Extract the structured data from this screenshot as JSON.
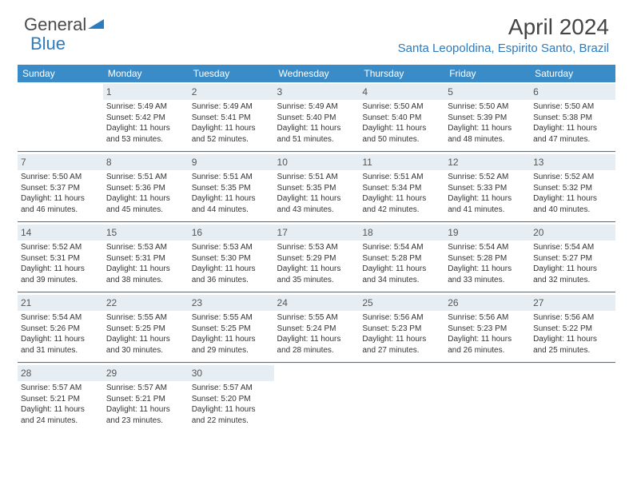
{
  "brand": {
    "part1": "General",
    "part2": "Blue"
  },
  "title": "April 2024",
  "location": "Santa Leopoldina, Espirito Santo, Brazil",
  "colors": {
    "header_bg": "#3a8cc9",
    "accent": "#2b7bbf",
    "daybar": "#e6eef4",
    "text": "#333333"
  },
  "weekdays": [
    "Sunday",
    "Monday",
    "Tuesday",
    "Wednesday",
    "Thursday",
    "Friday",
    "Saturday"
  ],
  "weeks": [
    [
      null,
      {
        "n": "1",
        "sr": "5:49 AM",
        "ss": "5:42 PM",
        "dl": "11 hours and 53 minutes."
      },
      {
        "n": "2",
        "sr": "5:49 AM",
        "ss": "5:41 PM",
        "dl": "11 hours and 52 minutes."
      },
      {
        "n": "3",
        "sr": "5:49 AM",
        "ss": "5:40 PM",
        "dl": "11 hours and 51 minutes."
      },
      {
        "n": "4",
        "sr": "5:50 AM",
        "ss": "5:40 PM",
        "dl": "11 hours and 50 minutes."
      },
      {
        "n": "5",
        "sr": "5:50 AM",
        "ss": "5:39 PM",
        "dl": "11 hours and 48 minutes."
      },
      {
        "n": "6",
        "sr": "5:50 AM",
        "ss": "5:38 PM",
        "dl": "11 hours and 47 minutes."
      }
    ],
    [
      {
        "n": "7",
        "sr": "5:50 AM",
        "ss": "5:37 PM",
        "dl": "11 hours and 46 minutes."
      },
      {
        "n": "8",
        "sr": "5:51 AM",
        "ss": "5:36 PM",
        "dl": "11 hours and 45 minutes."
      },
      {
        "n": "9",
        "sr": "5:51 AM",
        "ss": "5:35 PM",
        "dl": "11 hours and 44 minutes."
      },
      {
        "n": "10",
        "sr": "5:51 AM",
        "ss": "5:35 PM",
        "dl": "11 hours and 43 minutes."
      },
      {
        "n": "11",
        "sr": "5:51 AM",
        "ss": "5:34 PM",
        "dl": "11 hours and 42 minutes."
      },
      {
        "n": "12",
        "sr": "5:52 AM",
        "ss": "5:33 PM",
        "dl": "11 hours and 41 minutes."
      },
      {
        "n": "13",
        "sr": "5:52 AM",
        "ss": "5:32 PM",
        "dl": "11 hours and 40 minutes."
      }
    ],
    [
      {
        "n": "14",
        "sr": "5:52 AM",
        "ss": "5:31 PM",
        "dl": "11 hours and 39 minutes."
      },
      {
        "n": "15",
        "sr": "5:53 AM",
        "ss": "5:31 PM",
        "dl": "11 hours and 38 minutes."
      },
      {
        "n": "16",
        "sr": "5:53 AM",
        "ss": "5:30 PM",
        "dl": "11 hours and 36 minutes."
      },
      {
        "n": "17",
        "sr": "5:53 AM",
        "ss": "5:29 PM",
        "dl": "11 hours and 35 minutes."
      },
      {
        "n": "18",
        "sr": "5:54 AM",
        "ss": "5:28 PM",
        "dl": "11 hours and 34 minutes."
      },
      {
        "n": "19",
        "sr": "5:54 AM",
        "ss": "5:28 PM",
        "dl": "11 hours and 33 minutes."
      },
      {
        "n": "20",
        "sr": "5:54 AM",
        "ss": "5:27 PM",
        "dl": "11 hours and 32 minutes."
      }
    ],
    [
      {
        "n": "21",
        "sr": "5:54 AM",
        "ss": "5:26 PM",
        "dl": "11 hours and 31 minutes."
      },
      {
        "n": "22",
        "sr": "5:55 AM",
        "ss": "5:25 PM",
        "dl": "11 hours and 30 minutes."
      },
      {
        "n": "23",
        "sr": "5:55 AM",
        "ss": "5:25 PM",
        "dl": "11 hours and 29 minutes."
      },
      {
        "n": "24",
        "sr": "5:55 AM",
        "ss": "5:24 PM",
        "dl": "11 hours and 28 minutes."
      },
      {
        "n": "25",
        "sr": "5:56 AM",
        "ss": "5:23 PM",
        "dl": "11 hours and 27 minutes."
      },
      {
        "n": "26",
        "sr": "5:56 AM",
        "ss": "5:23 PM",
        "dl": "11 hours and 26 minutes."
      },
      {
        "n": "27",
        "sr": "5:56 AM",
        "ss": "5:22 PM",
        "dl": "11 hours and 25 minutes."
      }
    ],
    [
      {
        "n": "28",
        "sr": "5:57 AM",
        "ss": "5:21 PM",
        "dl": "11 hours and 24 minutes."
      },
      {
        "n": "29",
        "sr": "5:57 AM",
        "ss": "5:21 PM",
        "dl": "11 hours and 23 minutes."
      },
      {
        "n": "30",
        "sr": "5:57 AM",
        "ss": "5:20 PM",
        "dl": "11 hours and 22 minutes."
      },
      null,
      null,
      null,
      null
    ]
  ],
  "labels": {
    "sunrise": "Sunrise:",
    "sunset": "Sunset:",
    "daylight": "Daylight:"
  }
}
